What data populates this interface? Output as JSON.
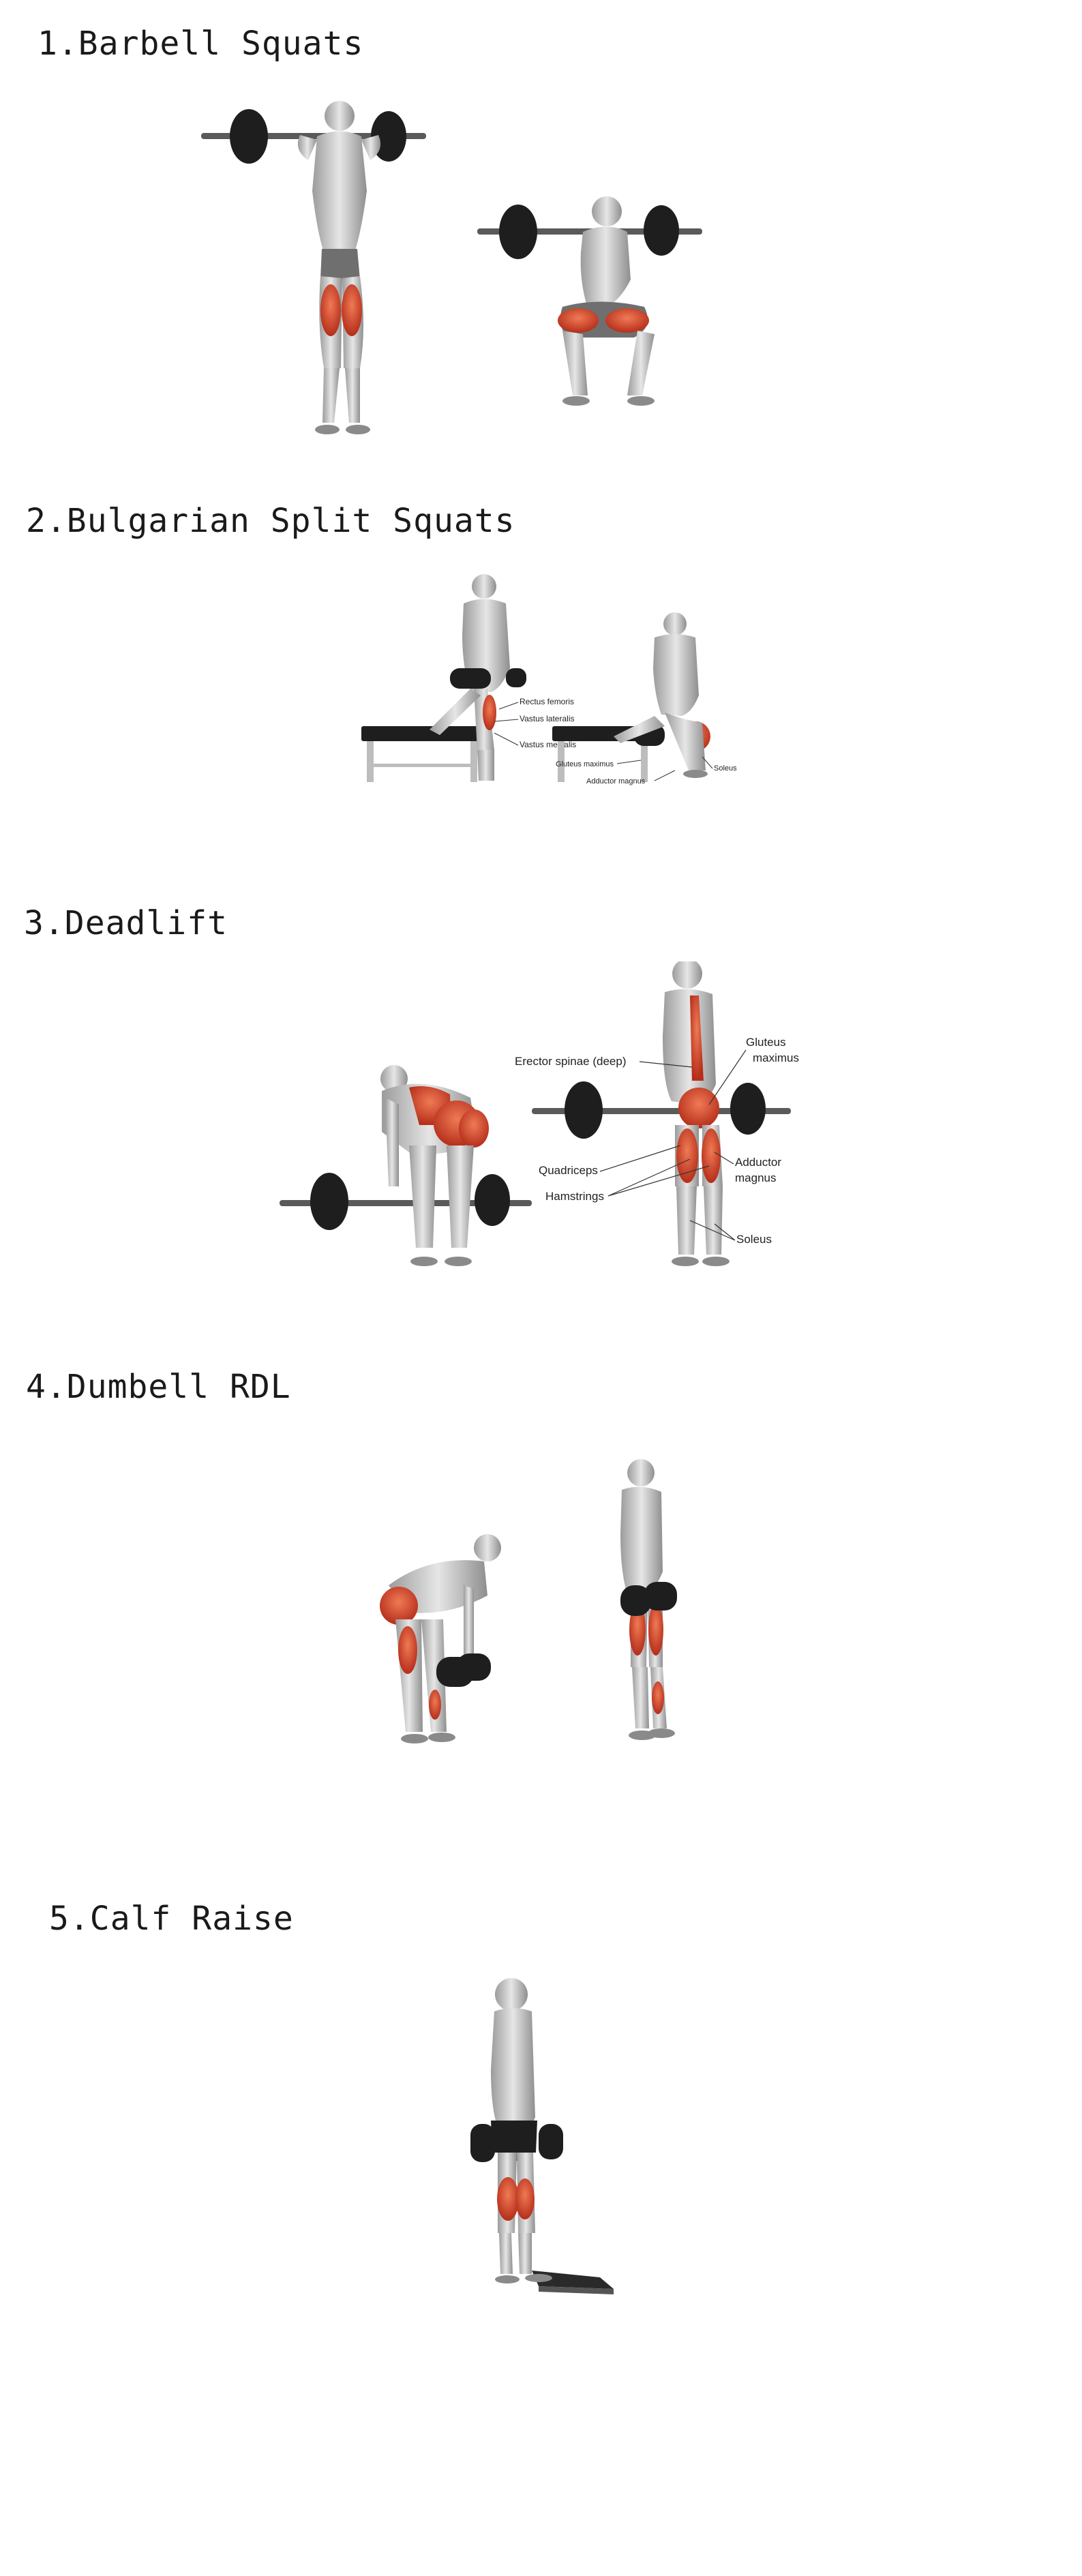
{
  "exercises": [
    {
      "title": "1.Barbell Squats"
    },
    {
      "title": "2.Bulgarian Split Squats",
      "muscles": [
        "Rectus femoris",
        "Vastus lateralis",
        "Vastus medialis",
        "Gluteus maximus",
        "Adductor magnus",
        "Soleus"
      ]
    },
    {
      "title": "3.Deadlift",
      "muscles": [
        "Erector spinae (deep)",
        "Gluteus",
        "maximus",
        "Quadriceps",
        "Hamstrings",
        "Adductor",
        "magnus",
        "Soleus"
      ]
    },
    {
      "title": "4.Dumbell RDL"
    },
    {
      "title": "5.Calf Raise"
    }
  ],
  "colors": {
    "muscle": "#d9472b",
    "skin": "#d4d4d4",
    "weight": "#1e1e1e",
    "bar": "#555555"
  }
}
